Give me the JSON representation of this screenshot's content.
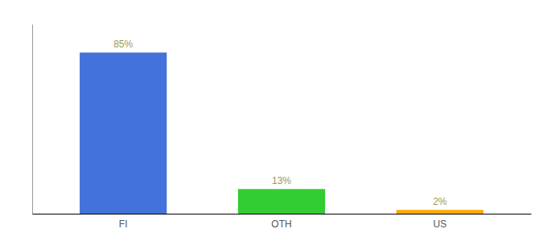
{
  "chart_data": {
    "type": "bar",
    "categories": [
      "FI",
      "OTH",
      "US"
    ],
    "values": [
      85,
      13,
      2
    ],
    "value_labels": [
      "85%",
      "13%",
      "2%"
    ],
    "colors": [
      "#4472db",
      "#33cc33",
      "#ffaa00"
    ],
    "ylim": [
      0,
      100
    ],
    "data_labels": true,
    "tick_labels": "x",
    "grid": false
  }
}
